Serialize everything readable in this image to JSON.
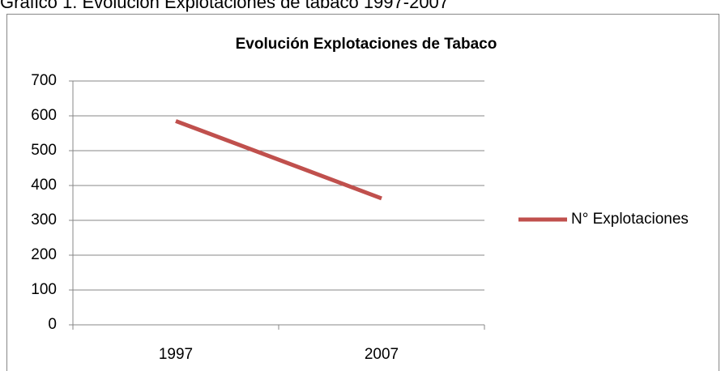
{
  "caption": "Gráfico 1. Evolución Explotaciones de tabaco 1997-2007",
  "chart_data": {
    "type": "line",
    "title": "Evolución Explotaciones de Tabaco",
    "categories": [
      "1997",
      "2007"
    ],
    "series": [
      {
        "name": "N° Explotaciones",
        "color": "#c0504d",
        "values": [
          585,
          363
        ]
      }
    ],
    "ylim": [
      0,
      700
    ],
    "yticks": [
      0,
      100,
      200,
      300,
      400,
      500,
      600,
      700
    ],
    "grid": true,
    "legend": "right"
  }
}
